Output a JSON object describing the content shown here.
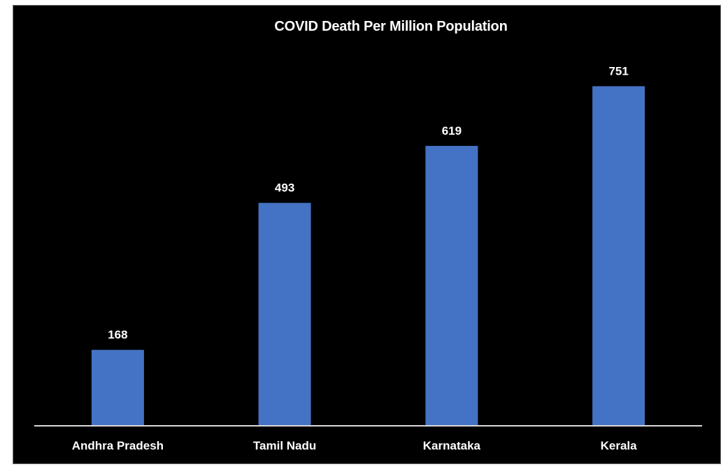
{
  "chart_data": {
    "type": "bar",
    "title": "COVID Death Per Million Population",
    "xlabel": "",
    "ylabel": "",
    "categories": [
      "Andhra Pradesh",
      "Tamil Nadu",
      "Karnataka",
      "Kerala"
    ],
    "values": [
      168,
      493,
      619,
      751
    ],
    "data_labels": [
      "168",
      "493",
      "619",
      "751"
    ],
    "ylim": [
      0,
      800
    ],
    "grid": false,
    "legend": "none",
    "colors": {
      "bar": "#4472C4",
      "background": "#000000",
      "text": "#FFFFFF",
      "axis": "#D9D9D9"
    }
  }
}
